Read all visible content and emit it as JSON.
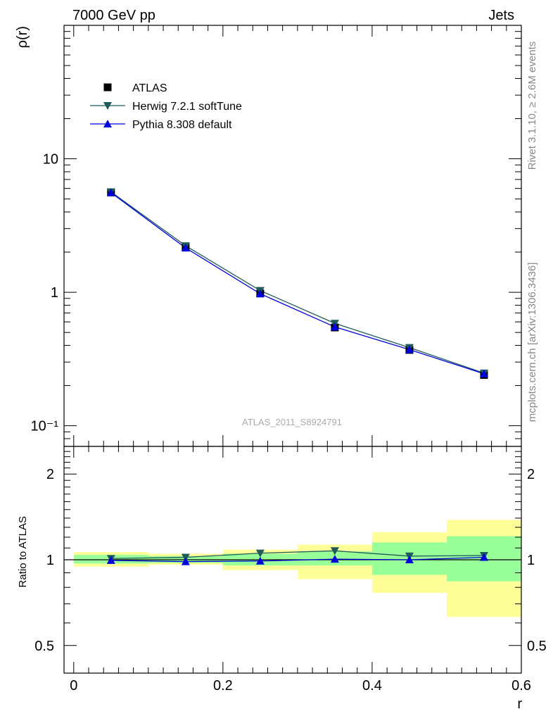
{
  "header": {
    "left_title": "7000 GeV pp",
    "right_title": "Jets",
    "side_label_top": "Rivet 3.1.10, ≥ 2.6M events",
    "side_label_bottom": "mcplots.cern.ch [arXiv:1306.3436]",
    "watermark": "ATLAS_2011_S8924791"
  },
  "chart_data": [
    {
      "panel": "main",
      "type": "line",
      "ylabel": "ρ(r)",
      "yscale": "log",
      "ylim": [
        0.07,
        100
      ],
      "xlim": [
        -0.013,
        0.6
      ],
      "ytick_labels": [
        "10",
        "1",
        "10⁻¹"
      ],
      "legend_position": "top-left",
      "x": [
        0.05,
        0.15,
        0.25,
        0.35,
        0.45,
        0.55
      ],
      "series": [
        {
          "name": "ATLAS",
          "marker": "square",
          "color": "#000000",
          "values": [
            5.6,
            2.18,
            0.98,
            0.545,
            0.37,
            0.24
          ]
        },
        {
          "name": "Herwig 7.2.1 softTune",
          "marker": "triangle-down",
          "color": "#1e5c5c",
          "values": [
            5.65,
            2.23,
            1.03,
            0.585,
            0.385,
            0.248
          ]
        },
        {
          "name": "Pythia 8.308 default",
          "marker": "triangle-up",
          "color": "#0000dd",
          "values": [
            5.58,
            2.15,
            0.975,
            0.55,
            0.372,
            0.245
          ]
        }
      ]
    },
    {
      "panel": "ratio",
      "type": "line",
      "ylabel": "Ratio to ATLAS",
      "xlabel": "r",
      "ylim": [
        0.4,
        2.5
      ],
      "xlim": [
        -0.013,
        0.6
      ],
      "xtick_labels": [
        "0",
        "0.2",
        "0.4",
        "0.6"
      ],
      "ytick_labels": [
        "2",
        "1",
        "0.5"
      ],
      "x_bin_edges": [
        0,
        0.1,
        0.2,
        0.3,
        0.4,
        0.5,
        0.6
      ],
      "uncertainty_stat_band": [
        [
          0.97,
          1.04
        ],
        [
          0.975,
          1.03
        ],
        [
          0.955,
          1.05
        ],
        [
          0.955,
          1.07
        ],
        [
          0.885,
          1.15
        ],
        [
          0.84,
          1.21
        ]
      ],
      "uncertainty_total_band": [
        [
          0.945,
          1.065
        ],
        [
          0.96,
          1.05
        ],
        [
          0.92,
          1.085
        ],
        [
          0.855,
          1.13
        ],
        [
          0.765,
          1.25
        ],
        [
          0.63,
          1.38
        ]
      ],
      "band_colors": {
        "stat": "#99ff99",
        "total": "#ffff99"
      },
      "x": [
        0.05,
        0.15,
        0.25,
        0.35,
        0.45,
        0.55
      ],
      "series": [
        {
          "name": "Herwig 7.2.1 softTune",
          "marker": "triangle-down",
          "color": "#1e5c5c",
          "values": [
            1.01,
            1.02,
            1.055,
            1.075,
            1.03,
            1.035
          ]
        },
        {
          "name": "Pythia 8.308 default",
          "marker": "triangle-up",
          "color": "#0000dd",
          "values": [
            0.995,
            0.985,
            0.99,
            1.005,
            1.0,
            1.02
          ]
        }
      ]
    }
  ]
}
